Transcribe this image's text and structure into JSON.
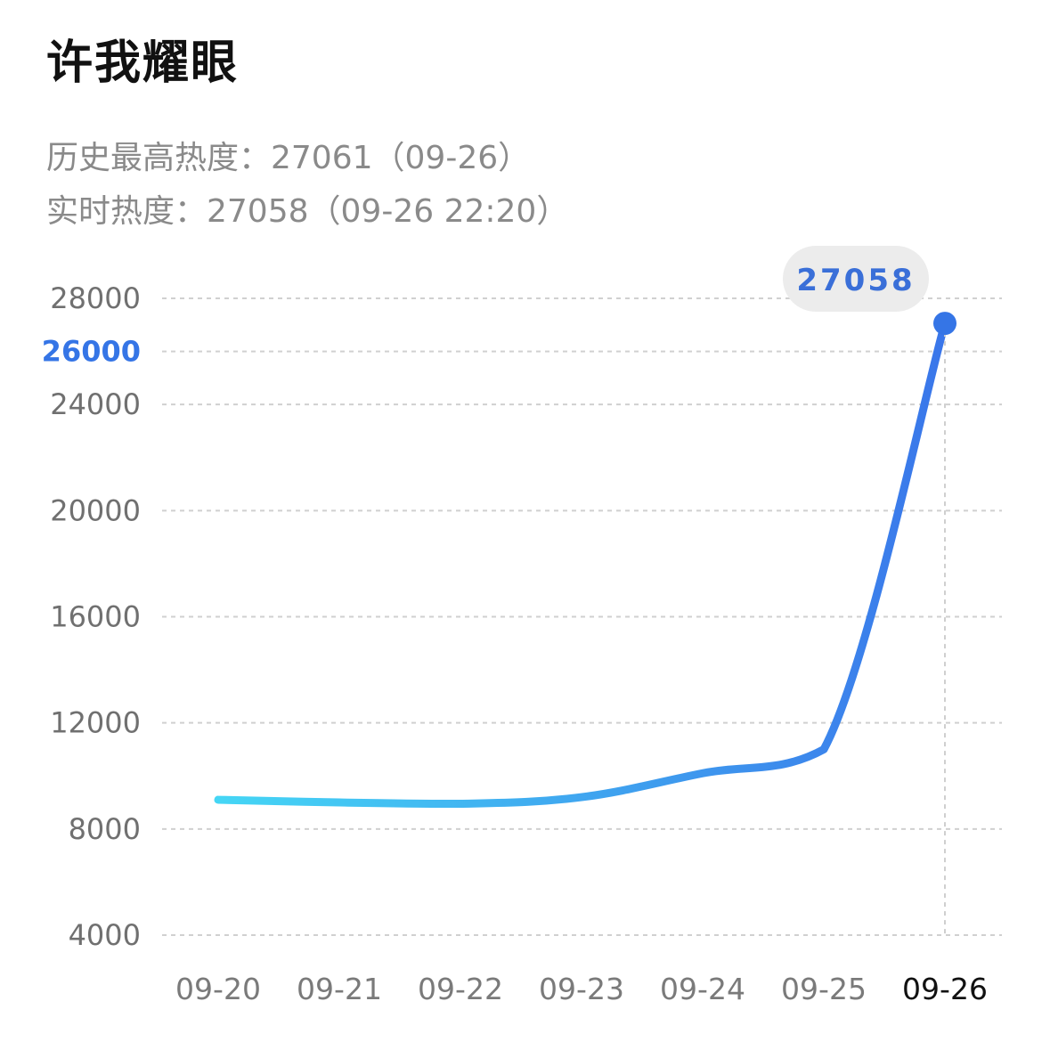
{
  "header": {
    "title": "许我耀眼"
  },
  "info": {
    "peak": "历史最高热度：27061（09-26）",
    "realtime": "实时热度：27058（09-26 22:20）"
  },
  "colors": {
    "line_start": "#45d6f5",
    "line_end": "#3a76ea",
    "accent": "#3575e6",
    "tooltip_bg": "#ececec",
    "grid": "#d0d0d0"
  },
  "chart_data": {
    "type": "line",
    "title": "",
    "xlabel": "",
    "ylabel": "",
    "x_categories": [
      "09-20",
      "09-21",
      "09-22",
      "09-23",
      "09-24",
      "09-25",
      "09-26"
    ],
    "y_ticks": [
      4000,
      8000,
      12000,
      16000,
      20000,
      24000,
      26000,
      28000
    ],
    "y_tick_labels": [
      "4000",
      "8000",
      "12000",
      "16000",
      "20000",
      "24000",
      "26000",
      "28000"
    ],
    "highlight_y_tick": "26000",
    "highlight_x_tick": "09-26",
    "ylim": [
      4000,
      28000
    ],
    "grid": true,
    "series": [
      {
        "points": [
          {
            "x": "09-20",
            "y": 9100
          },
          {
            "x": "09-21",
            "y": 9000
          },
          {
            "x": "09-22",
            "y": 8950
          },
          {
            "x": "09-23",
            "y": 9200
          },
          {
            "x": "09-24",
            "y": 10100
          },
          {
            "x": "09-25",
            "y": 11000
          },
          {
            "x": "09-26",
            "y": 27058
          }
        ]
      }
    ],
    "tooltip": {
      "x": "09-26",
      "value": 27058,
      "label": "27058"
    }
  }
}
